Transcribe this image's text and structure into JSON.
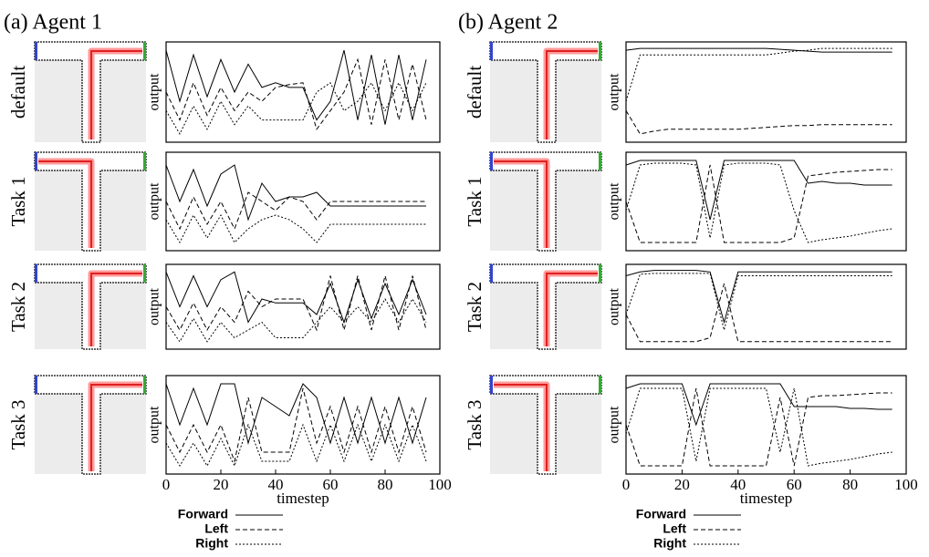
{
  "panel_titles": [
    "(a) Agent 1",
    "(b) Agent 2"
  ],
  "chart_data": [
    {
      "type": "line",
      "title": "default",
      "ylabel": "output",
      "x": [
        0,
        5,
        10,
        15,
        20,
        25,
        30,
        35,
        40,
        45,
        50,
        55,
        60,
        65,
        70,
        75,
        80,
        85,
        90,
        95
      ],
      "xlim": [
        0,
        100
      ],
      "ylim": [
        0,
        1
      ],
      "series": [
        {
          "name": "Forward",
          "color": "#000",
          "style": "solid",
          "values": [
            0.95,
            0.4,
            0.9,
            0.45,
            0.85,
            0.5,
            0.8,
            0.55,
            0.6,
            0.55,
            0.55,
            0.2,
            0.4,
            0.95,
            0.2,
            0.9,
            0.15,
            0.9,
            0.2,
            0.85
          ]
        },
        {
          "name": "Left",
          "color": "#000",
          "style": "dashed",
          "values": [
            0.5,
            0.2,
            0.6,
            0.25,
            0.55,
            0.3,
            0.5,
            0.4,
            0.55,
            0.58,
            0.6,
            0.1,
            0.3,
            0.5,
            0.85,
            0.15,
            0.85,
            0.2,
            0.8,
            0.2
          ]
        },
        {
          "name": "Right",
          "color": "#000",
          "style": "dotted",
          "values": [
            0.3,
            0.05,
            0.35,
            0.1,
            0.4,
            0.15,
            0.35,
            0.2,
            0.2,
            0.2,
            0.2,
            0.5,
            0.6,
            0.3,
            0.4,
            0.6,
            0.3,
            0.6,
            0.3,
            0.6
          ]
        }
      ]
    },
    {
      "type": "line",
      "title": "Task 1",
      "ylabel": "output",
      "x": [
        0,
        5,
        10,
        15,
        20,
        25,
        30,
        35,
        40,
        45,
        50,
        55,
        60,
        65,
        70,
        75,
        80,
        85,
        90,
        95
      ],
      "xlim": [
        0,
        100
      ],
      "ylim": [
        0,
        1
      ],
      "series": [
        {
          "name": "Forward",
          "color": "#000",
          "style": "solid",
          "values": [
            0.9,
            0.5,
            0.85,
            0.45,
            0.8,
            0.9,
            0.3,
            0.7,
            0.5,
            0.55,
            0.55,
            0.6,
            0.45,
            0.45,
            0.45,
            0.45,
            0.45,
            0.45,
            0.45,
            0.45
          ]
        },
        {
          "name": "Left",
          "color": "#000",
          "style": "dashed",
          "values": [
            0.5,
            0.2,
            0.55,
            0.25,
            0.5,
            0.2,
            0.6,
            0.5,
            0.4,
            0.55,
            0.5,
            0.3,
            0.5,
            0.5,
            0.5,
            0.5,
            0.5,
            0.5,
            0.5,
            0.5
          ]
        },
        {
          "name": "Right",
          "color": "#000",
          "style": "dotted",
          "values": [
            0.3,
            0.05,
            0.35,
            0.1,
            0.35,
            0.05,
            0.2,
            0.3,
            0.35,
            0.3,
            0.2,
            0.05,
            0.25,
            0.25,
            0.25,
            0.25,
            0.25,
            0.25,
            0.25,
            0.25
          ]
        }
      ]
    },
    {
      "type": "line",
      "title": "Task 2",
      "ylabel": "output",
      "x": [
        0,
        5,
        10,
        15,
        20,
        25,
        30,
        35,
        40,
        45,
        50,
        55,
        60,
        65,
        70,
        75,
        80,
        85,
        90,
        95
      ],
      "xlim": [
        0,
        100
      ],
      "ylim": [
        0,
        1
      ],
      "series": [
        {
          "name": "Forward",
          "color": "#000",
          "style": "solid",
          "values": [
            0.95,
            0.5,
            0.9,
            0.5,
            0.85,
            0.95,
            0.3,
            0.6,
            0.55,
            0.55,
            0.55,
            0.4,
            0.8,
            0.3,
            0.85,
            0.35,
            0.8,
            0.4,
            0.85,
            0.4
          ]
        },
        {
          "name": "Left",
          "color": "#000",
          "style": "dashed",
          "values": [
            0.5,
            0.2,
            0.55,
            0.2,
            0.5,
            0.3,
            0.7,
            0.5,
            0.6,
            0.6,
            0.6,
            0.2,
            0.9,
            0.2,
            0.9,
            0.2,
            0.9,
            0.2,
            0.9,
            0.2
          ]
        },
        {
          "name": "Right",
          "color": "#000",
          "style": "dotted",
          "values": [
            0.3,
            0.05,
            0.35,
            0.05,
            0.3,
            0.1,
            0.2,
            0.3,
            0.1,
            0.1,
            0.1,
            0.3,
            0.5,
            0.3,
            0.5,
            0.3,
            0.6,
            0.3,
            0.6,
            0.3
          ]
        }
      ]
    },
    {
      "type": "line",
      "title": "Task 3",
      "ylabel": "output",
      "xlabel": "timestep",
      "x": [
        0,
        5,
        10,
        15,
        20,
        25,
        30,
        35,
        40,
        45,
        50,
        55,
        60,
        65,
        70,
        75,
        80,
        85,
        90,
        95
      ],
      "xlim": [
        0,
        100
      ],
      "xticks": [
        0,
        20,
        40,
        60,
        80,
        100
      ],
      "ylim": [
        0,
        1
      ],
      "series": [
        {
          "name": "Forward",
          "color": "#000",
          "style": "solid",
          "values": [
            0.95,
            0.5,
            0.9,
            0.5,
            0.95,
            0.95,
            0.3,
            0.8,
            0.7,
            0.6,
            0.95,
            0.8,
            0.3,
            0.8,
            0.3,
            0.8,
            0.3,
            0.8,
            0.3,
            0.8
          ]
        },
        {
          "name": "Left",
          "color": "#000",
          "style": "dashed",
          "values": [
            0.5,
            0.2,
            0.5,
            0.2,
            0.5,
            0.1,
            0.8,
            0.2,
            0.2,
            0.2,
            0.9,
            0.3,
            0.7,
            0.2,
            0.7,
            0.2,
            0.7,
            0.2,
            0.7,
            0.2
          ]
        },
        {
          "name": "Right",
          "color": "#000",
          "style": "dotted",
          "values": [
            0.3,
            0.05,
            0.3,
            0.05,
            0.35,
            0.05,
            0.5,
            0.1,
            0.1,
            0.1,
            0.5,
            0.1,
            0.5,
            0.1,
            0.5,
            0.1,
            0.5,
            0.1,
            0.5,
            0.1
          ]
        }
      ]
    },
    {
      "type": "line",
      "title": "default",
      "ylabel": "output",
      "x": [
        0,
        5,
        10,
        15,
        20,
        25,
        30,
        35,
        40,
        45,
        50,
        55,
        60,
        65,
        70,
        75,
        80,
        85,
        90,
        95
      ],
      "xlim": [
        0,
        100
      ],
      "ylim": [
        0,
        1
      ],
      "series": [
        {
          "name": "Forward",
          "color": "#000",
          "style": "solid",
          "values": [
            0.95,
            0.97,
            0.97,
            0.97,
            0.97,
            0.97,
            0.97,
            0.97,
            0.97,
            0.97,
            0.97,
            0.96,
            0.95,
            0.94,
            0.93,
            0.93,
            0.93,
            0.93,
            0.93,
            0.93
          ]
        },
        {
          "name": "Left",
          "color": "#000",
          "style": "dashed",
          "values": [
            0.3,
            0.05,
            0.08,
            0.1,
            0.1,
            0.1,
            0.1,
            0.1,
            0.1,
            0.11,
            0.12,
            0.13,
            0.14,
            0.14,
            0.15,
            0.15,
            0.15,
            0.15,
            0.15,
            0.15
          ]
        },
        {
          "name": "Right",
          "color": "#000",
          "style": "dotted",
          "values": [
            0.4,
            0.9,
            0.9,
            0.9,
            0.9,
            0.9,
            0.9,
            0.9,
            0.9,
            0.9,
            0.9,
            0.92,
            0.94,
            0.95,
            0.97,
            0.97,
            0.97,
            0.97,
            0.97,
            0.97
          ]
        }
      ]
    },
    {
      "type": "line",
      "title": "Task 1",
      "ylabel": "output",
      "x": [
        0,
        5,
        10,
        15,
        20,
        25,
        30,
        35,
        40,
        45,
        50,
        55,
        60,
        65,
        70,
        75,
        80,
        85,
        90,
        95
      ],
      "xlim": [
        0,
        100
      ],
      "ylim": [
        0,
        1
      ],
      "series": [
        {
          "name": "Forward",
          "color": "#000",
          "style": "solid",
          "values": [
            0.9,
            0.95,
            0.95,
            0.95,
            0.95,
            0.95,
            0.3,
            0.95,
            0.95,
            0.95,
            0.95,
            0.95,
            0.95,
            0.7,
            0.72,
            0.7,
            0.7,
            0.68,
            0.68,
            0.68
          ]
        },
        {
          "name": "Left",
          "color": "#000",
          "style": "dashed",
          "values": [
            0.5,
            0.05,
            0.05,
            0.05,
            0.05,
            0.05,
            0.9,
            0.05,
            0.05,
            0.05,
            0.05,
            0.05,
            0.1,
            0.78,
            0.8,
            0.82,
            0.83,
            0.84,
            0.85,
            0.85
          ]
        },
        {
          "name": "Right",
          "color": "#000",
          "style": "dotted",
          "values": [
            0.4,
            0.9,
            0.92,
            0.92,
            0.92,
            0.9,
            0.1,
            0.9,
            0.92,
            0.92,
            0.92,
            0.9,
            0.4,
            0.05,
            0.08,
            0.1,
            0.12,
            0.15,
            0.18,
            0.2
          ]
        }
      ]
    },
    {
      "type": "line",
      "title": "Task 2",
      "ylabel": "output",
      "x": [
        0,
        5,
        10,
        15,
        20,
        25,
        30,
        35,
        40,
        45,
        50,
        55,
        60,
        65,
        70,
        75,
        80,
        85,
        90,
        95
      ],
      "xlim": [
        0,
        100
      ],
      "ylim": [
        0,
        1
      ],
      "series": [
        {
          "name": "Forward",
          "color": "#000",
          "style": "solid",
          "values": [
            0.9,
            0.95,
            0.97,
            0.97,
            0.97,
            0.97,
            0.95,
            0.3,
            0.95,
            0.95,
            0.95,
            0.95,
            0.95,
            0.95,
            0.95,
            0.95,
            0.95,
            0.95,
            0.95,
            0.95
          ]
        },
        {
          "name": "Left",
          "color": "#000",
          "style": "dashed",
          "values": [
            0.4,
            0.05,
            0.05,
            0.05,
            0.05,
            0.05,
            0.1,
            0.8,
            0.05,
            0.05,
            0.05,
            0.05,
            0.05,
            0.05,
            0.05,
            0.05,
            0.05,
            0.05,
            0.05,
            0.05
          ]
        },
        {
          "name": "Right",
          "color": "#000",
          "style": "dotted",
          "values": [
            0.4,
            0.92,
            0.93,
            0.93,
            0.93,
            0.93,
            0.93,
            0.2,
            0.9,
            0.9,
            0.9,
            0.9,
            0.9,
            0.9,
            0.9,
            0.9,
            0.9,
            0.9,
            0.9,
            0.9
          ]
        }
      ]
    },
    {
      "type": "line",
      "title": "Task 3",
      "ylabel": "output",
      "xlabel": "timestep",
      "x": [
        0,
        5,
        10,
        15,
        20,
        25,
        30,
        35,
        40,
        45,
        50,
        55,
        60,
        65,
        70,
        75,
        80,
        85,
        90,
        95
      ],
      "xlim": [
        0,
        100
      ],
      "xticks": [
        0,
        20,
        40,
        60,
        80,
        100
      ],
      "ylim": [
        0,
        1
      ],
      "series": [
        {
          "name": "Forward",
          "color": "#000",
          "style": "solid",
          "values": [
            0.9,
            0.95,
            0.95,
            0.95,
            0.95,
            0.5,
            0.95,
            0.95,
            0.95,
            0.95,
            0.95,
            0.95,
            0.7,
            0.7,
            0.7,
            0.7,
            0.68,
            0.68,
            0.67,
            0.67
          ]
        },
        {
          "name": "Left",
          "color": "#000",
          "style": "dashed",
          "values": [
            0.5,
            0.05,
            0.05,
            0.05,
            0.05,
            0.9,
            0.05,
            0.05,
            0.05,
            0.05,
            0.05,
            0.8,
            0.05,
            0.8,
            0.82,
            0.82,
            0.83,
            0.84,
            0.85,
            0.85
          ]
        },
        {
          "name": "Right",
          "color": "#000",
          "style": "dotted",
          "values": [
            0.4,
            0.9,
            0.9,
            0.9,
            0.9,
            0.1,
            0.9,
            0.9,
            0.9,
            0.9,
            0.9,
            0.2,
            0.9,
            0.05,
            0.08,
            0.1,
            0.12,
            0.15,
            0.18,
            0.2
          ]
        }
      ]
    }
  ]
}
